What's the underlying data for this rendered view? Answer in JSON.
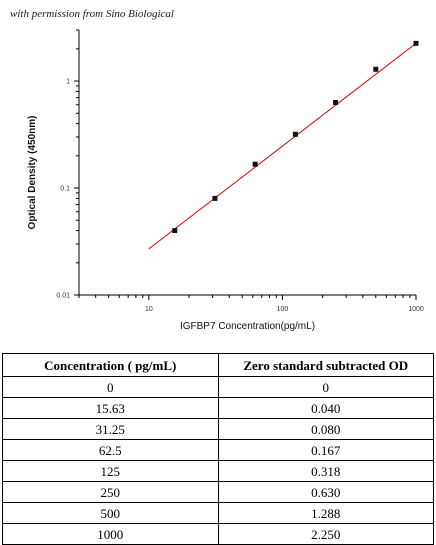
{
  "credit": "with permission from Sino Biological",
  "chart_data": {
    "type": "scatter",
    "xlabel": "IGFBP7  Concentration(pg/mL)",
    "ylabel": "Optical Density (450nm)",
    "xscale": "log",
    "yscale": "log",
    "xlim": [
      3,
      1000
    ],
    "ylim": [
      0.01,
      3
    ],
    "xticks": [
      10,
      100,
      1000
    ],
    "xtick_labels": [
      "10",
      "100",
      "1000"
    ],
    "yticks": [
      0.01,
      0.1,
      1
    ],
    "ytick_labels": [
      "0.01",
      "0.1",
      "1"
    ],
    "grid": false,
    "points": {
      "x": [
        15.63,
        31.25,
        62.5,
        125,
        250,
        500,
        1000
      ],
      "y": [
        0.04,
        0.08,
        0.167,
        0.318,
        0.63,
        1.288,
        2.25
      ]
    },
    "fit_line": {
      "color": "#d40000",
      "x_range": [
        10,
        1000
      ],
      "y_range": [
        0.027,
        2.25
      ]
    },
    "marker_color": "#111111"
  },
  "table": {
    "headers": [
      "Concentration ( pg/mL)",
      "Zero standard subtracted OD"
    ],
    "rows": [
      [
        "0",
        "0"
      ],
      [
        "15.63",
        "0.040"
      ],
      [
        "31.25",
        "0.080"
      ],
      [
        "62.5",
        "0.167"
      ],
      [
        "125",
        "0.318"
      ],
      [
        "250",
        "0.630"
      ],
      [
        "500",
        "1.288"
      ],
      [
        "1000",
        "2.250"
      ]
    ]
  }
}
